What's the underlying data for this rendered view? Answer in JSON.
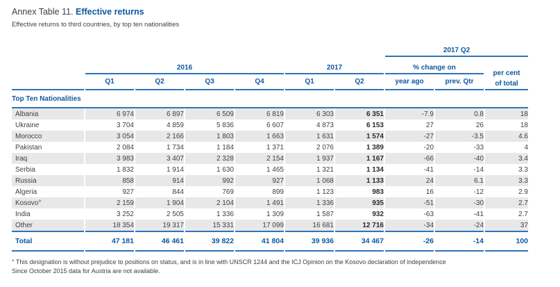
{
  "title": {
    "prefix": "Annex Table 11.",
    "main": "Effective returns"
  },
  "subtitle": "Effective returns to third countries, by top ten nationalities",
  "table": {
    "group_headers": {
      "q2_2017": "2017 Q2",
      "y2016": "2016",
      "y2017": "2017",
      "pct_change": "% change on",
      "pct_total": "per cent\nof total"
    },
    "quarter_headers": [
      "Q1",
      "Q2",
      "Q3",
      "Q4",
      "Q1",
      "Q2"
    ],
    "change_headers": [
      "year ago",
      "prev. Qtr"
    ],
    "section_label": "Top Ten Nationalities",
    "rows": [
      {
        "label": "Albania",
        "values": [
          "6 974",
          "6 897",
          "6 509",
          "6 819",
          "6 303",
          "6 351",
          "-7.9",
          "0.8",
          "18"
        ]
      },
      {
        "label": "Ukraine",
        "values": [
          "3 704",
          "4 859",
          "5 836",
          "6 607",
          "4 873",
          "6 153",
          "27",
          "26",
          "18"
        ]
      },
      {
        "label": "Morocco",
        "values": [
          "3 054",
          "2 166",
          "1 803",
          "1 663",
          "1 631",
          "1 574",
          "-27",
          "-3.5",
          "4.6"
        ]
      },
      {
        "label": "Pakistan",
        "values": [
          "2 084",
          "1 734",
          "1 184",
          "1 371",
          "2 076",
          "1 389",
          "-20",
          "-33",
          "4"
        ]
      },
      {
        "label": "Iraq",
        "values": [
          "3 983",
          "3 407",
          "2 328",
          "2 154",
          "1 937",
          "1 167",
          "-66",
          "-40",
          "3.4"
        ]
      },
      {
        "label": "Serbia",
        "values": [
          "1 832",
          "1 914",
          "1 630",
          "1 465",
          "1 321",
          "1 134",
          "-41",
          "-14",
          "3.3"
        ]
      },
      {
        "label": "Russia",
        "values": [
          "858",
          "914",
          "992",
          "927",
          "1 068",
          "1 133",
          "24",
          "6.1",
          "3.3"
        ]
      },
      {
        "label": "Algeria",
        "values": [
          "927",
          "844",
          "769",
          "899",
          "1 123",
          "983",
          "16",
          "-12",
          "2.9"
        ]
      },
      {
        "label": "Kosovo°",
        "values": [
          "2 159",
          "1 904",
          "2 104",
          "1 491",
          "1 336",
          "935",
          "-51",
          "-30",
          "2.7"
        ]
      },
      {
        "label": "India",
        "values": [
          "3 252",
          "2 505",
          "1 336",
          "1 309",
          "1 587",
          "932",
          "-63",
          "-41",
          "2.7"
        ]
      },
      {
        "label": "Other",
        "values": [
          "18 354",
          "19 317",
          "15 331",
          "17 099",
          "16 681",
          "12 716",
          "-34",
          "-24",
          "37"
        ]
      }
    ],
    "total": {
      "label": "Total",
      "values": [
        "47 181",
        "46 461",
        "39 822",
        "41 804",
        "39 936",
        "34 467",
        "-26",
        "-14",
        "100"
      ]
    }
  },
  "footnote": {
    "line1": "°  This designation is without prejudice to positions on status, and is in line with UNSCR 1244 and the ICJ Opinion on the Kosovo declaration of independence",
    "line2": "Since October 2015 data for Austria are not available."
  },
  "colors": {
    "accent_blue": "#0e579f",
    "rule_blue": "#2e74b8",
    "stripe_gray": "#e8e8e8",
    "body_text": "#3f3f3f"
  }
}
